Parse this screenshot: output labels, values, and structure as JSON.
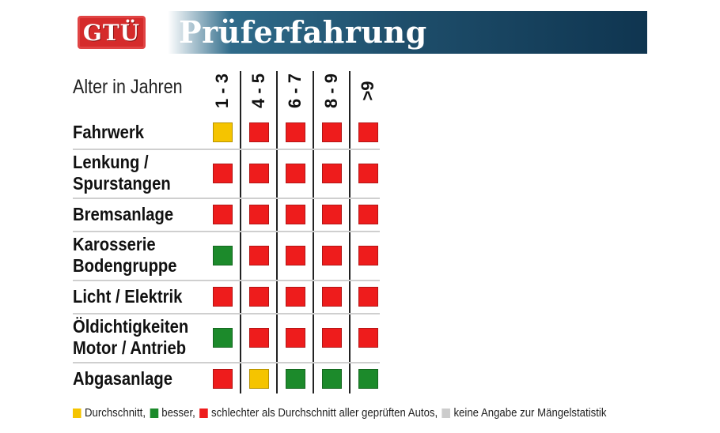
{
  "header": {
    "logo_text": "GTÜ",
    "title": "Prüferfahrung"
  },
  "table": {
    "age_label": "Alter in Jahren",
    "columns": [
      "1 - 3",
      "4 - 5",
      "6 - 7",
      "8 - 9",
      ">9"
    ],
    "rows": [
      {
        "label_lines": [
          "Fahrwerk"
        ],
        "ratings": [
          "average",
          "worse",
          "worse",
          "worse",
          "worse"
        ]
      },
      {
        "label_lines": [
          "Lenkung /",
          "Spurstangen"
        ],
        "ratings": [
          "worse",
          "worse",
          "worse",
          "worse",
          "worse"
        ]
      },
      {
        "label_lines": [
          "Bremsanlage"
        ],
        "ratings": [
          "worse",
          "worse",
          "worse",
          "worse",
          "worse"
        ]
      },
      {
        "label_lines": [
          "Karosserie",
          "Bodengruppe"
        ],
        "ratings": [
          "better",
          "worse",
          "worse",
          "worse",
          "worse"
        ]
      },
      {
        "label_lines": [
          "Licht / Elektrik"
        ],
        "ratings": [
          "worse",
          "worse",
          "worse",
          "worse",
          "worse"
        ]
      },
      {
        "label_lines": [
          "Öldichtigkeiten",
          "Motor / Antrieb"
        ],
        "ratings": [
          "better",
          "worse",
          "worse",
          "worse",
          "worse"
        ]
      },
      {
        "label_lines": [
          "Abgasanlage"
        ],
        "ratings": [
          "worse",
          "average",
          "better",
          "better",
          "better"
        ]
      }
    ]
  },
  "colors": {
    "average": "#f5c400",
    "better": "#1c8a2b",
    "worse": "#ee1c1c",
    "no_data": "#cccccc"
  },
  "legend": [
    {
      "key": "average",
      "text": "Durchschnitt,"
    },
    {
      "key": "better",
      "text": "besser,"
    },
    {
      "key": "worse",
      "text": "schlechter als Durchschnitt aller geprüften Autos,"
    },
    {
      "key": "no_data",
      "text": "keine Angabe zur Mängelstatistik"
    }
  ]
}
